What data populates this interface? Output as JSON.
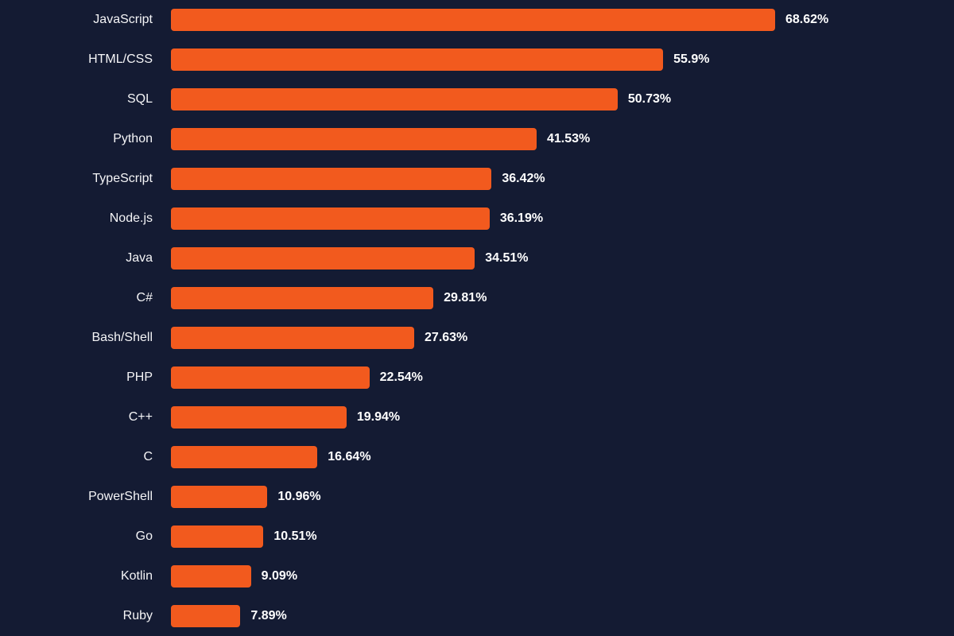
{
  "chart_data": {
    "type": "bar",
    "orientation": "horizontal",
    "title": "",
    "xlabel": "",
    "ylabel": "",
    "categories": [
      "JavaScript",
      "HTML/CSS",
      "SQL",
      "Python",
      "TypeScript",
      "Node.js",
      "Java",
      "C#",
      "Bash/Shell",
      "PHP",
      "C++",
      "C",
      "PowerShell",
      "Go",
      "Kotlin",
      "Ruby"
    ],
    "values": [
      68.62,
      55.9,
      50.73,
      41.53,
      36.42,
      36.19,
      34.51,
      29.81,
      27.63,
      22.54,
      19.94,
      16.64,
      10.96,
      10.51,
      9.09,
      7.89
    ],
    "value_suffix": "%",
    "value_labels": [
      "68.62%",
      "55.9%",
      "50.73%",
      "41.53%",
      "36.42%",
      "36.19%",
      "34.51%",
      "29.81%",
      "27.63%",
      "22.54%",
      "19.94%",
      "16.64%",
      "10.96%",
      "10.51%",
      "9.09%",
      "7.89%"
    ],
    "xlim": [
      0,
      70
    ],
    "grid": false,
    "legend": "none",
    "bar_color": "#f25a1e",
    "background_color": "#141b33",
    "label_color": "#f5f5f7",
    "value_label_color": "#ffffff"
  }
}
